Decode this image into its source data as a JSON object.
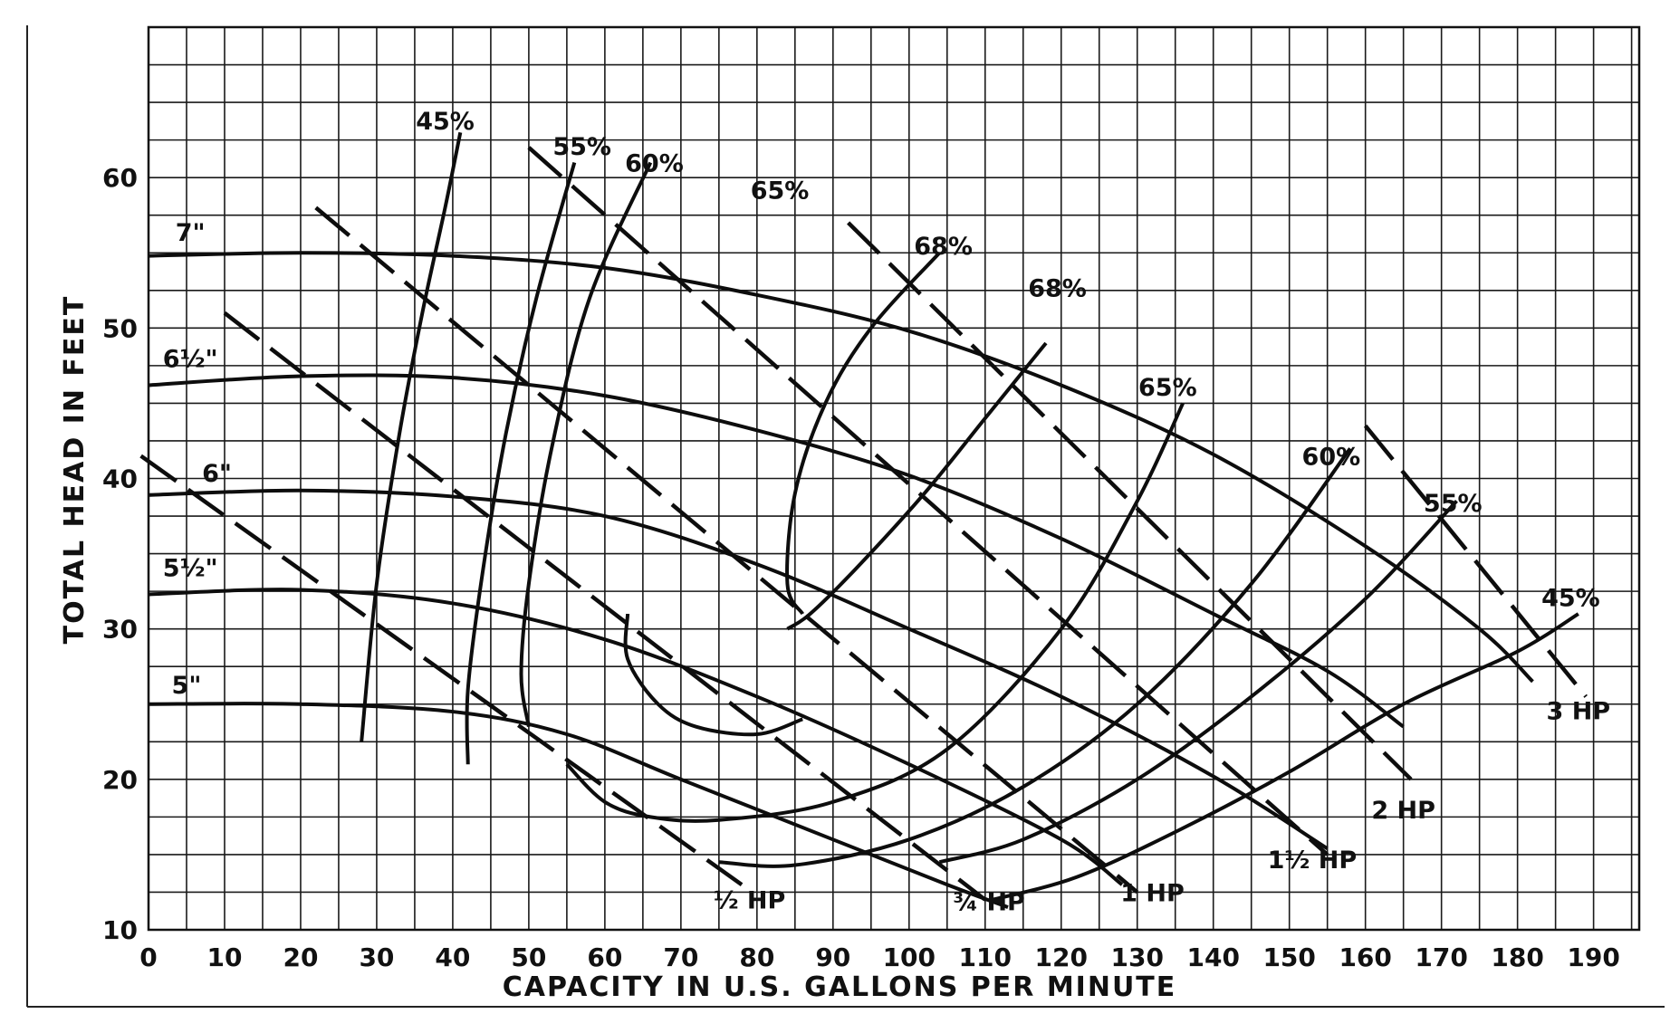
{
  "chart_data": {
    "type": "line",
    "title": "",
    "xlabel": "CAPACITY IN U.S. GALLONS PER MINUTE",
    "ylabel": "TOTAL HEAD IN FEET",
    "xlim": [
      0,
      196
    ],
    "ylim": [
      10,
      70
    ],
    "grid": true,
    "x_ticks": [
      0,
      10,
      20,
      30,
      40,
      50,
      60,
      70,
      80,
      90,
      100,
      110,
      120,
      130,
      140,
      150,
      160,
      170,
      180,
      190
    ],
    "y_ticks": [
      10,
      20,
      30,
      40,
      50,
      60
    ],
    "impeller_curves": [
      {
        "label": "7\"",
        "points": [
          [
            0,
            54.8
          ],
          [
            20,
            55.0
          ],
          [
            40,
            54.8
          ],
          [
            60,
            54.0
          ],
          [
            80,
            52.2
          ],
          [
            100,
            49.8
          ],
          [
            120,
            46.2
          ],
          [
            140,
            41.6
          ],
          [
            160,
            35.5
          ],
          [
            175,
            30.0
          ],
          [
            182,
            26.5
          ]
        ]
      },
      {
        "label": "6½\"",
        "points": [
          [
            0,
            46.2
          ],
          [
            20,
            46.8
          ],
          [
            40,
            46.7
          ],
          [
            60,
            45.5
          ],
          [
            80,
            43.2
          ],
          [
            100,
            40.2
          ],
          [
            120,
            36.0
          ],
          [
            140,
            31.0
          ],
          [
            155,
            27.2
          ],
          [
            165,
            23.5
          ]
        ]
      },
      {
        "label": "6\"",
        "points": [
          [
            0,
            38.9
          ],
          [
            20,
            39.2
          ],
          [
            40,
            38.8
          ],
          [
            60,
            37.5
          ],
          [
            80,
            34.3
          ],
          [
            100,
            30.0
          ],
          [
            120,
            25.5
          ],
          [
            140,
            20.2
          ],
          [
            155,
            15.4
          ]
        ]
      },
      {
        "label": "5½\"",
        "points": [
          [
            0,
            32.3
          ],
          [
            20,
            32.6
          ],
          [
            40,
            31.7
          ],
          [
            60,
            29.3
          ],
          [
            80,
            25.5
          ],
          [
            100,
            21.0
          ],
          [
            120,
            16.0
          ],
          [
            128,
            13.0
          ]
        ]
      },
      {
        "label": "5\"",
        "points": [
          [
            0,
            25.0
          ],
          [
            20,
            25.0
          ],
          [
            40,
            24.5
          ],
          [
            55,
            23.0
          ],
          [
            70,
            20.0
          ],
          [
            90,
            16.0
          ],
          [
            105,
            13.0
          ],
          [
            113,
            11.5
          ]
        ]
      }
    ],
    "efficiency_curves": [
      {
        "label": "45%",
        "points": [
          [
            28,
            22.5
          ],
          [
            30,
            33
          ],
          [
            33,
            43
          ],
          [
            36,
            51
          ],
          [
            39,
            58
          ],
          [
            41,
            63
          ]
        ]
      },
      {
        "label": "55%",
        "points": [
          [
            42,
            21
          ],
          [
            42,
            26
          ],
          [
            44,
            34
          ],
          [
            47,
            43
          ],
          [
            51,
            52
          ],
          [
            56,
            61
          ]
        ]
      },
      {
        "label": "60%",
        "points": [
          [
            50,
            23.5
          ],
          [
            49,
            27
          ],
          [
            50,
            33
          ],
          [
            53,
            42
          ],
          [
            58,
            52
          ],
          [
            66,
            61
          ]
        ]
      },
      {
        "label": "65%",
        "points": [
          [
            63,
            31
          ],
          [
            63,
            28
          ],
          [
            67,
            25
          ],
          [
            72,
            23.5
          ],
          [
            80,
            23
          ],
          [
            86,
            24
          ]
        ]
      },
      {
        "label": "68%",
        "points": [
          [
            86,
            31
          ],
          [
            84,
            33
          ],
          [
            85,
            39
          ],
          [
            89,
            45
          ],
          [
            95,
            50
          ],
          [
            104,
            55
          ]
        ]
      },
      {
        "label": "68%",
        "points": [
          [
            84,
            30
          ],
          [
            87,
            31
          ],
          [
            93,
            34
          ],
          [
            102,
            39
          ],
          [
            110,
            44
          ],
          [
            118,
            49
          ]
        ]
      },
      {
        "label": "65%",
        "points": [
          [
            55,
            21
          ],
          [
            60,
            18.5
          ],
          [
            66,
            17.5
          ],
          [
            75,
            17.3
          ],
          [
            90,
            18.5
          ],
          [
            105,
            22
          ],
          [
            120,
            30
          ],
          [
            130,
            38.5
          ],
          [
            136,
            45
          ]
        ]
      },
      {
        "label": "60%",
        "points": [
          [
            75,
            14.5
          ],
          [
            85,
            14.3
          ],
          [
            100,
            16.0
          ],
          [
            115,
            19.5
          ],
          [
            130,
            25.0
          ],
          [
            145,
            33.0
          ],
          [
            158,
            42.0
          ]
        ]
      },
      {
        "label": "55%",
        "points": [
          [
            104,
            14.5
          ],
          [
            115,
            16.0
          ],
          [
            130,
            20.0
          ],
          [
            145,
            25.5
          ],
          [
            160,
            32.0
          ],
          [
            172,
            38.5
          ]
        ]
      },
      {
        "label": "45%",
        "points": [
          [
            111,
            12.0
          ],
          [
            122,
            13.5
          ],
          [
            135,
            16.5
          ],
          [
            150,
            20.5
          ],
          [
            165,
            25.0
          ],
          [
            180,
            28.5
          ],
          [
            188,
            31
          ]
        ]
      }
    ],
    "horsepower_lines": [
      {
        "label": "½ HP",
        "points": [
          [
            -1,
            41.5
          ],
          [
            78,
            13
          ]
        ]
      },
      {
        "label": "¾ HP",
        "points": [
          [
            10,
            51
          ],
          [
            110,
            12
          ]
        ]
      },
      {
        "label": "1 HP",
        "points": [
          [
            22,
            58
          ],
          [
            130,
            12.5
          ]
        ]
      },
      {
        "label": "1½ HP",
        "points": [
          [
            50,
            62
          ],
          [
            155,
            15
          ]
        ]
      },
      {
        "label": "2 HP",
        "points": [
          [
            92,
            57
          ],
          [
            166,
            20
          ]
        ]
      },
      {
        "label": "3 HP",
        "points": [
          [
            160,
            43.5
          ],
          [
            189,
            25.5
          ]
        ]
      }
    ],
    "annotations": [
      {
        "text": "45%",
        "x": 39,
        "y": 63.2
      },
      {
        "text": "55%",
        "x": 57,
        "y": 61.5
      },
      {
        "text": "60%",
        "x": 66.5,
        "y": 60.4
      },
      {
        "text": "65%",
        "x": 83,
        "y": 58.6
      },
      {
        "text": "68%",
        "x": 104.5,
        "y": 54.9
      },
      {
        "text": "68%",
        "x": 119.5,
        "y": 52.1
      },
      {
        "text": "65%",
        "x": 134,
        "y": 45.5
      },
      {
        "text": "60%",
        "x": 155.5,
        "y": 40.9
      },
      {
        "text": "55%",
        "x": 171.5,
        "y": 37.8
      },
      {
        "text": "45%",
        "x": 187,
        "y": 31.5
      },
      {
        "text": "7\"",
        "x": 5.5,
        "y": 55.8
      },
      {
        "text": "6½\"",
        "x": 5.5,
        "y": 47.4
      },
      {
        "text": "6\"",
        "x": 9,
        "y": 39.8
      },
      {
        "text": "5½\"",
        "x": 5.5,
        "y": 33.5
      },
      {
        "text": "5\"",
        "x": 5,
        "y": 25.7
      },
      {
        "text": "½ HP",
        "x": 79,
        "y": 11.4
      },
      {
        "text": "¾ HP",
        "x": 110.5,
        "y": 11.3
      },
      {
        "text": "1 HP",
        "x": 132,
        "y": 11.9
      },
      {
        "text": "1½ HP",
        "x": 153,
        "y": 14.1
      },
      {
        "text": "2 HP",
        "x": 165,
        "y": 17.4
      },
      {
        "text": "3 HP",
        "x": 188,
        "y": 24.0
      }
    ]
  }
}
